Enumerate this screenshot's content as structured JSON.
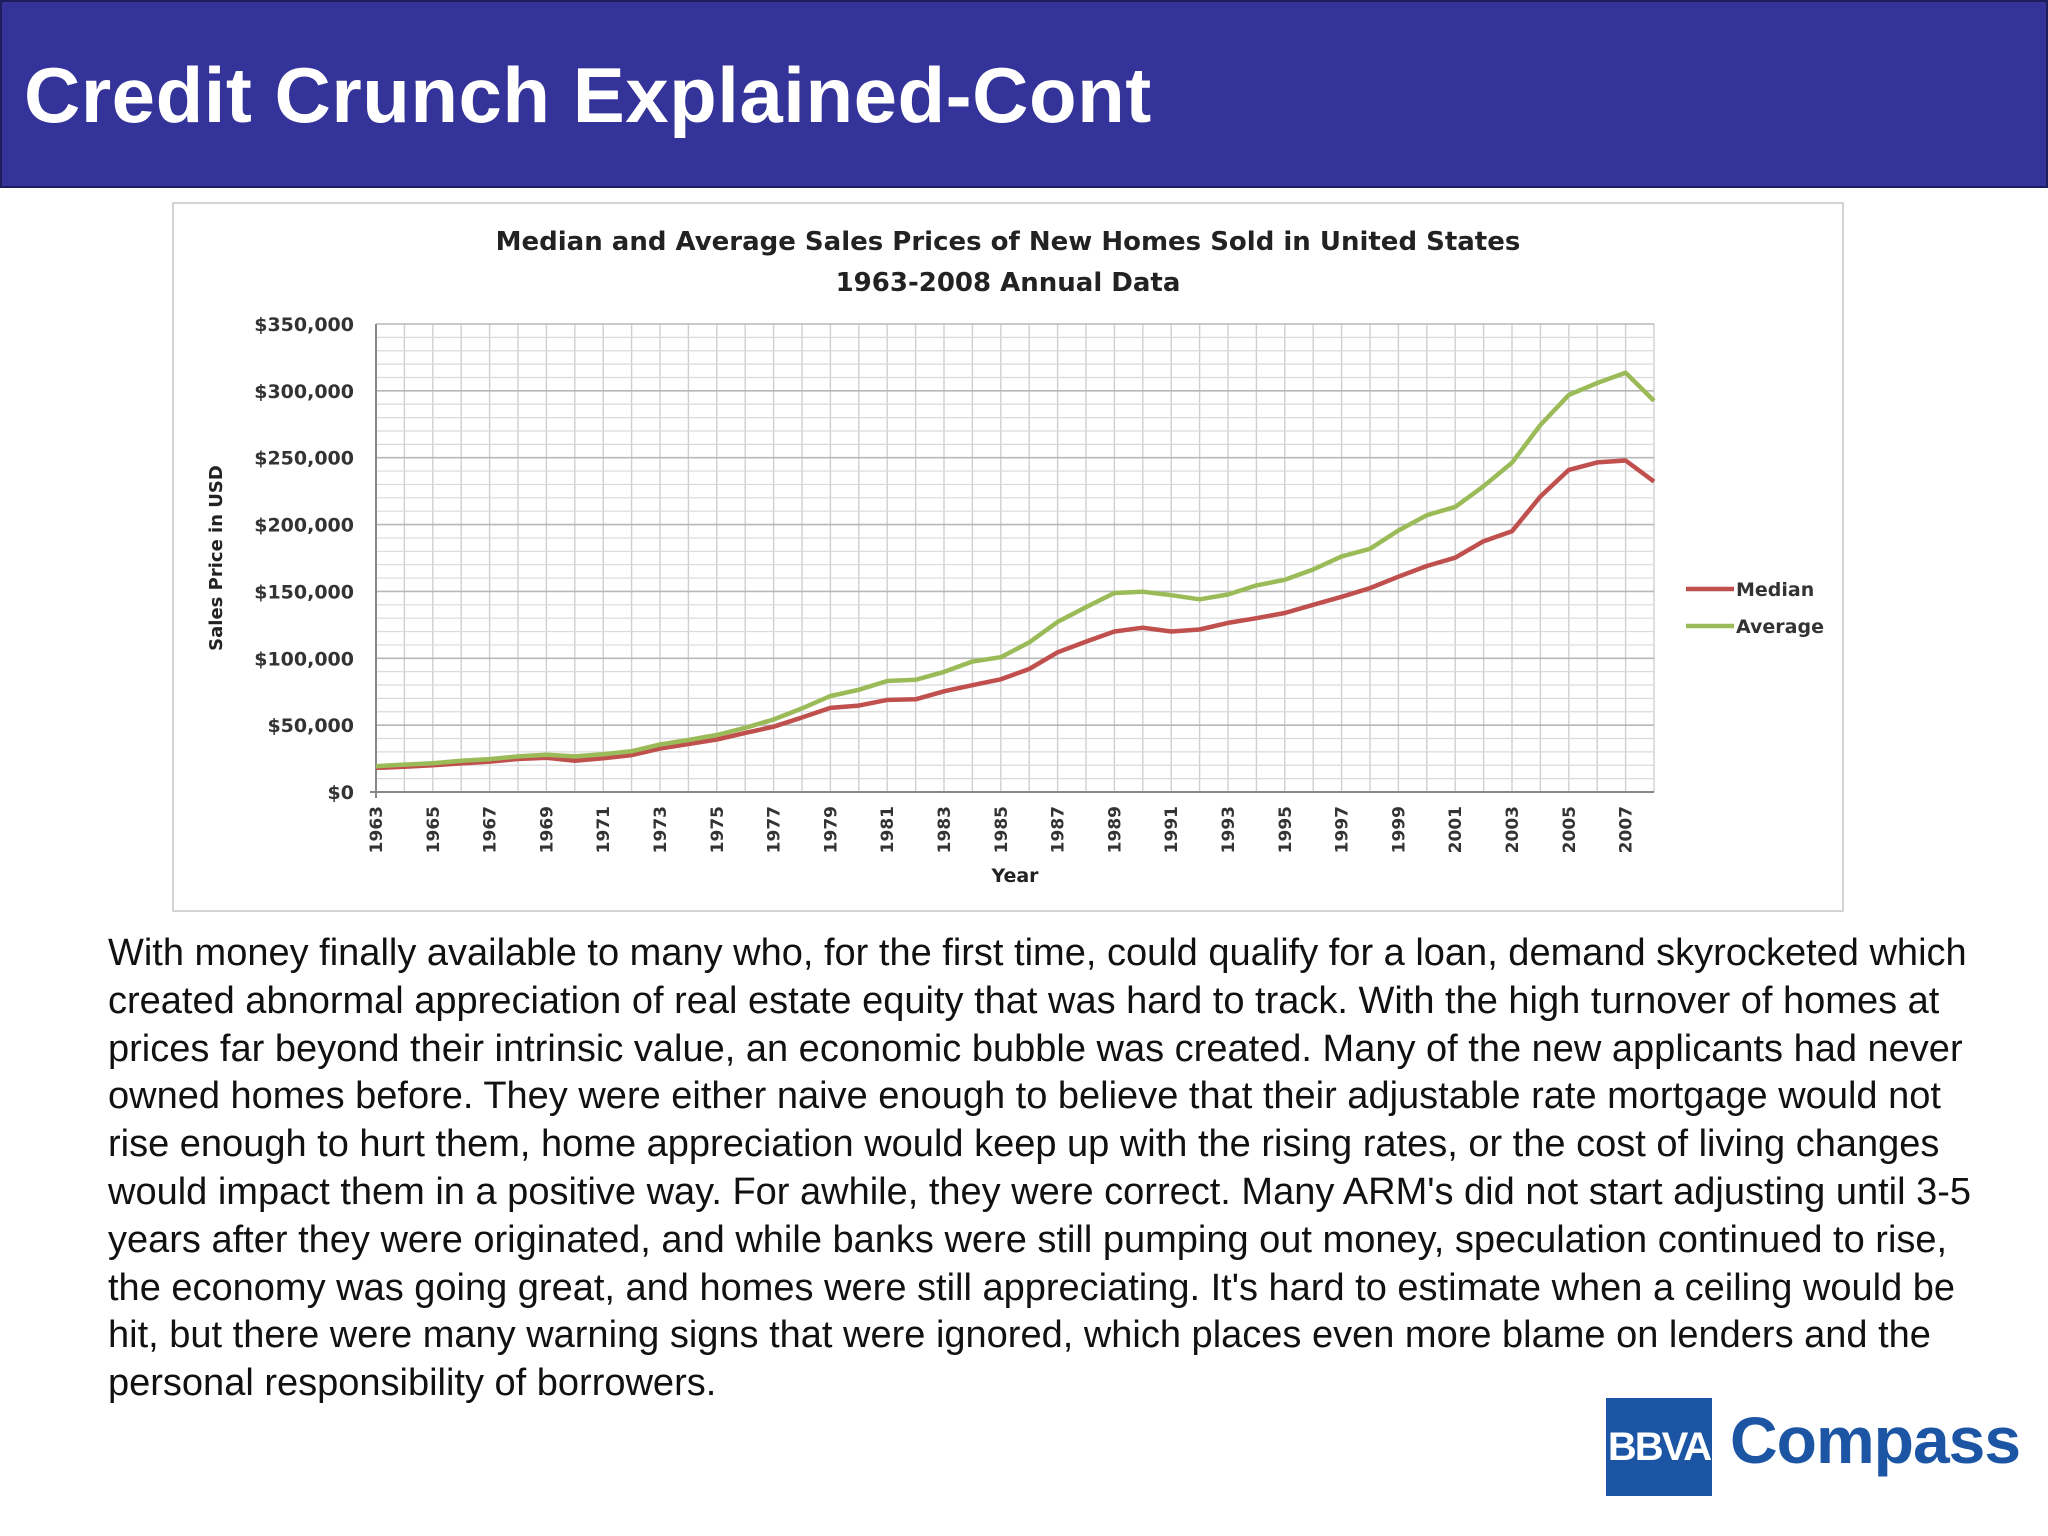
{
  "slide": {
    "title": "Credit Crunch Explained-Cont",
    "body": "With money finally available to many who, for the first time, could qualify for a loan, demand skyrocketed which created abnormal appreciation of real estate equity that was hard to track. With the high turnover of homes at prices far beyond their intrinsic value, an economic bubble was created. Many of the new applicants had never owned homes before. They were either naive enough to believe that their adjustable rate mortgage would not rise enough to hurt them, home appreciation would keep up with the rising rates, or the cost of living changes would impact them in a positive way. For awhile, they were correct. Many ARM's did not start adjusting until 3-5 years after they were originated, and while banks were still pumping out money, speculation continued to rise, the economy was going great, and homes were still appreciating. It's hard to estimate when a ceiling would be hit, but there were many warning signs that were ignored, which places even more blame on lenders and the personal responsibility of borrowers.",
    "logo_box_text": "BBVA",
    "logo_word": "Compass"
  },
  "chart_data": {
    "type": "line",
    "title": "Median and Average Sales Prices of New Homes Sold in United States",
    "subtitle": "1963-2008 Annual Data",
    "xlabel": "Year",
    "ylabel": "Sales Price in USD",
    "ylim": [
      0,
      350000
    ],
    "y_ticks": [
      0,
      50000,
      100000,
      150000,
      200000,
      250000,
      300000,
      350000
    ],
    "y_tick_labels": [
      "$0",
      "$50,000",
      "$100,000",
      "$150,000",
      "$200,000",
      "$250,000",
      "$300,000",
      "$350,000"
    ],
    "x_tick_labels": [
      "1963",
      "1965",
      "1967",
      "1969",
      "1971",
      "1973",
      "1975",
      "1977",
      "1979",
      "1981",
      "1983",
      "1985",
      "1987",
      "1989",
      "1991",
      "1993",
      "1995",
      "1997",
      "1999",
      "2001",
      "2003",
      "2005",
      "2007"
    ],
    "x": [
      1963,
      1964,
      1965,
      1966,
      1967,
      1968,
      1969,
      1970,
      1971,
      1972,
      1973,
      1974,
      1975,
      1976,
      1977,
      1978,
      1979,
      1980,
      1981,
      1982,
      1983,
      1984,
      1985,
      1986,
      1987,
      1988,
      1989,
      1990,
      1991,
      1992,
      1993,
      1994,
      1995,
      1996,
      1997,
      1998,
      1999,
      2000,
      2001,
      2002,
      2003,
      2004,
      2005,
      2006,
      2007,
      2008
    ],
    "grid": true,
    "legend_position": "right",
    "series": [
      {
        "name": "Median",
        "color": "#c0504d",
        "values": [
          18000,
          18900,
          20000,
          21400,
          22700,
          24700,
          25600,
          23400,
          25200,
          27600,
          32500,
          35900,
          39300,
          44200,
          48800,
          55700,
          62900,
          64600,
          68900,
          69300,
          75300,
          79900,
          84300,
          92000,
          104500,
          112500,
          120000,
          122900,
          120000,
          121500,
          126500,
          130000,
          133900,
          140000,
          146000,
          152500,
          161000,
          169000,
          175200,
          187600,
          195000,
          221000,
          240900,
          246500,
          247900,
          232100
        ]
      },
      {
        "name": "Average",
        "color": "#9bbb59",
        "values": [
          19300,
          20500,
          21500,
          23300,
          24600,
          26600,
          27900,
          26600,
          28300,
          30500,
          35500,
          38900,
          42600,
          48000,
          54200,
          62500,
          71800,
          76400,
          83000,
          83900,
          89800,
          97600,
          100800,
          111900,
          127200,
          138300,
          148800,
          149800,
          147200,
          144100,
          147700,
          154500,
          158700,
          166400,
          176200,
          181900,
          195600,
          207000,
          213200,
          228700,
          246300,
          274500,
          297000,
          305900,
          313600,
          292600
        ]
      }
    ]
  }
}
